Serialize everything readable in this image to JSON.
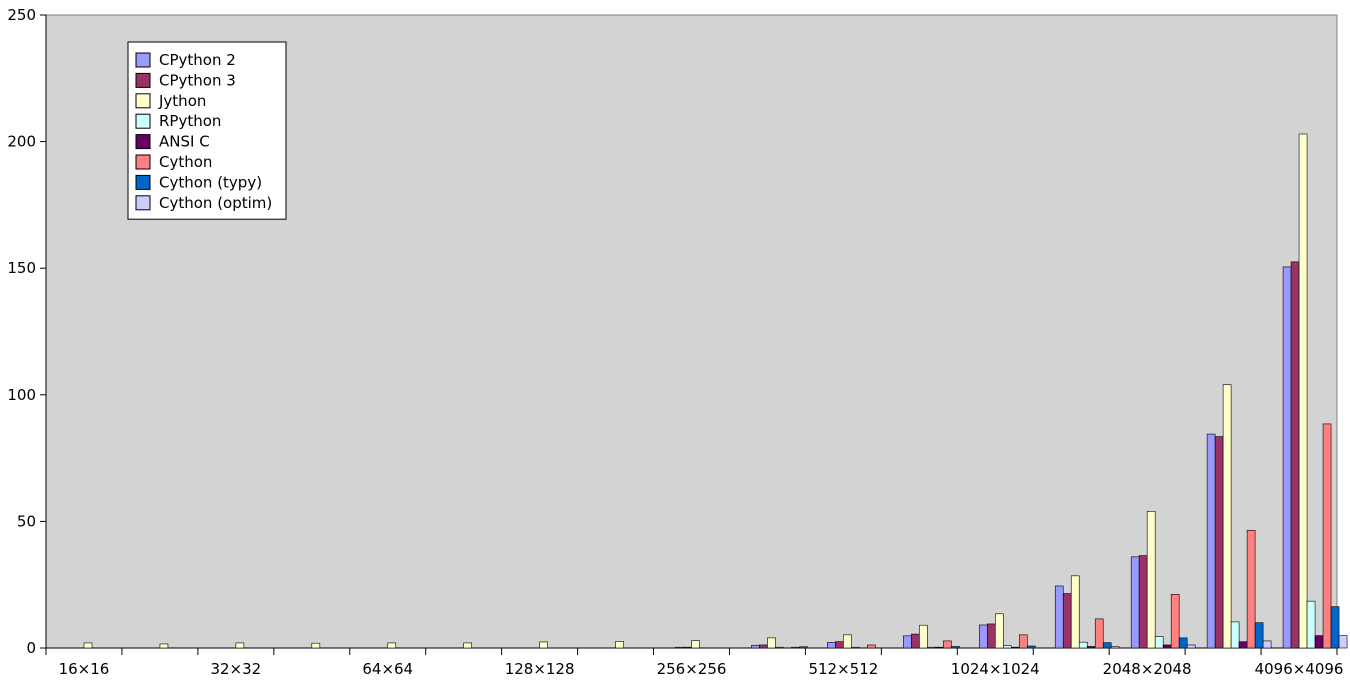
{
  "chart_data": {
    "type": "bar",
    "categories": [
      "16×16",
      "",
      "32×32",
      "",
      "64×64",
      "",
      "128×128",
      "",
      "256×256",
      "",
      "512×512",
      "",
      "1024×1024",
      "",
      "2048×2048",
      "",
      "4096×4096"
    ],
    "ylim": [
      0,
      250
    ],
    "yticks": [
      0,
      50,
      100,
      150,
      200,
      250
    ],
    "grid": false,
    "legend_position": "top-left",
    "plot_background": "#d3d3d3",
    "series": [
      {
        "name": "CPython 2",
        "color": "#9999ff",
        "values": [
          0,
          0,
          0,
          0,
          0,
          0,
          0,
          0,
          0.2,
          1.1,
          2.2,
          4.8,
          9.1,
          24.5,
          36.0,
          84.5,
          150.5
        ]
      },
      {
        "name": "CPython 3",
        "color": "#993366",
        "values": [
          0,
          0,
          0,
          0,
          0,
          0,
          0,
          0,
          0.3,
          1.2,
          2.5,
          5.5,
          9.5,
          21.5,
          36.5,
          83.5,
          152.5
        ]
      },
      {
        "name": "Jython",
        "color": "#ffffcc",
        "values": [
          2.0,
          1.6,
          2.0,
          1.9,
          2.0,
          2.0,
          2.4,
          2.6,
          2.9,
          4.0,
          5.2,
          9.0,
          13.5,
          28.5,
          54.0,
          104.0,
          203.0
        ]
      },
      {
        "name": "RPython",
        "color": "#ccffff",
        "values": [
          0,
          0,
          0,
          0,
          0,
          0,
          0,
          0,
          0,
          0.1,
          0.2,
          0.3,
          0.9,
          2.3,
          4.5,
          10.3,
          18.5
        ]
      },
      {
        "name": "ANSI C",
        "color": "#660066",
        "values": [
          0,
          0,
          0,
          0,
          0,
          0,
          0,
          0,
          0,
          0,
          0,
          0.1,
          0.2,
          0.6,
          1.2,
          2.5,
          4.9
        ]
      },
      {
        "name": "Cython",
        "color": "#ff8080",
        "values": [
          0,
          0,
          0,
          0,
          0,
          0,
          0,
          0,
          0,
          0.3,
          1.2,
          2.8,
          5.2,
          11.5,
          21.2,
          46.5,
          88.5
        ]
      },
      {
        "name": "Cython (typy)",
        "color": "#0066cc",
        "values": [
          0,
          0,
          0,
          0,
          0,
          0,
          0,
          0,
          0,
          0.5,
          0,
          0.6,
          0.8,
          2.1,
          4.0,
          10.0,
          16.3
        ]
      },
      {
        "name": "Cython (optim)",
        "color": "#ccccff",
        "values": [
          0,
          0,
          0,
          0,
          0,
          0,
          0,
          0,
          0,
          0,
          0,
          0,
          0,
          0.5,
          1.2,
          2.8,
          4.9
        ]
      }
    ]
  }
}
